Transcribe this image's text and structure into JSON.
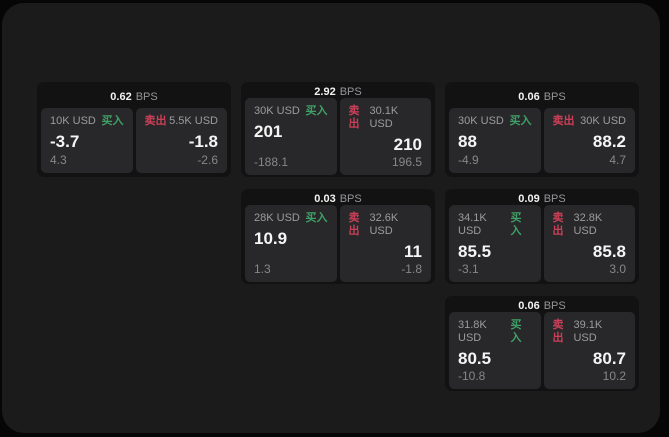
{
  "labels": {
    "buy": "买入",
    "sell": "卖出",
    "bps_suffix": "BPS"
  },
  "colors": {
    "background": "#060606",
    "container": "#1b1b1c",
    "card": "#121213",
    "panel": "#28282a",
    "buy_green": "#3fa167",
    "sell_red": "#cc3f58",
    "text_primary": "#f5f5f5",
    "text_muted": "#9c9c9e"
  },
  "cards": [
    {
      "bps": "0.62",
      "buy": {
        "amount": "10K USD",
        "price": "-3.7",
        "change": "4.3"
      },
      "sell": {
        "amount": "5.5K USD",
        "price": "-1.8",
        "change": "-2.6"
      }
    },
    {
      "bps": "2.92",
      "buy": {
        "amount": "30K USD",
        "price": "201",
        "change": "-188.1"
      },
      "sell": {
        "amount": "30.1K USD",
        "price": "210",
        "change": "196.5"
      }
    },
    {
      "bps": "0.06",
      "buy": {
        "amount": "30K USD",
        "price": "88",
        "change": "-4.9"
      },
      "sell": {
        "amount": "30K USD",
        "price": "88.2",
        "change": "4.7"
      }
    },
    {
      "bps": "0.03",
      "buy": {
        "amount": "28K USD",
        "price": "10.9",
        "change": "1.3"
      },
      "sell": {
        "amount": "32.6K USD",
        "price": "11",
        "change": "-1.8"
      }
    },
    {
      "bps": "0.09",
      "buy": {
        "amount": "34.1K USD",
        "price": "85.5",
        "change": "-3.1"
      },
      "sell": {
        "amount": "32.8K USD",
        "price": "85.8",
        "change": "3.0"
      }
    },
    {
      "bps": "0.06",
      "buy": {
        "amount": "31.8K USD",
        "price": "80.5",
        "change": "-10.8"
      },
      "sell": {
        "amount": "39.1K USD",
        "price": "80.7",
        "change": "10.2"
      }
    }
  ]
}
